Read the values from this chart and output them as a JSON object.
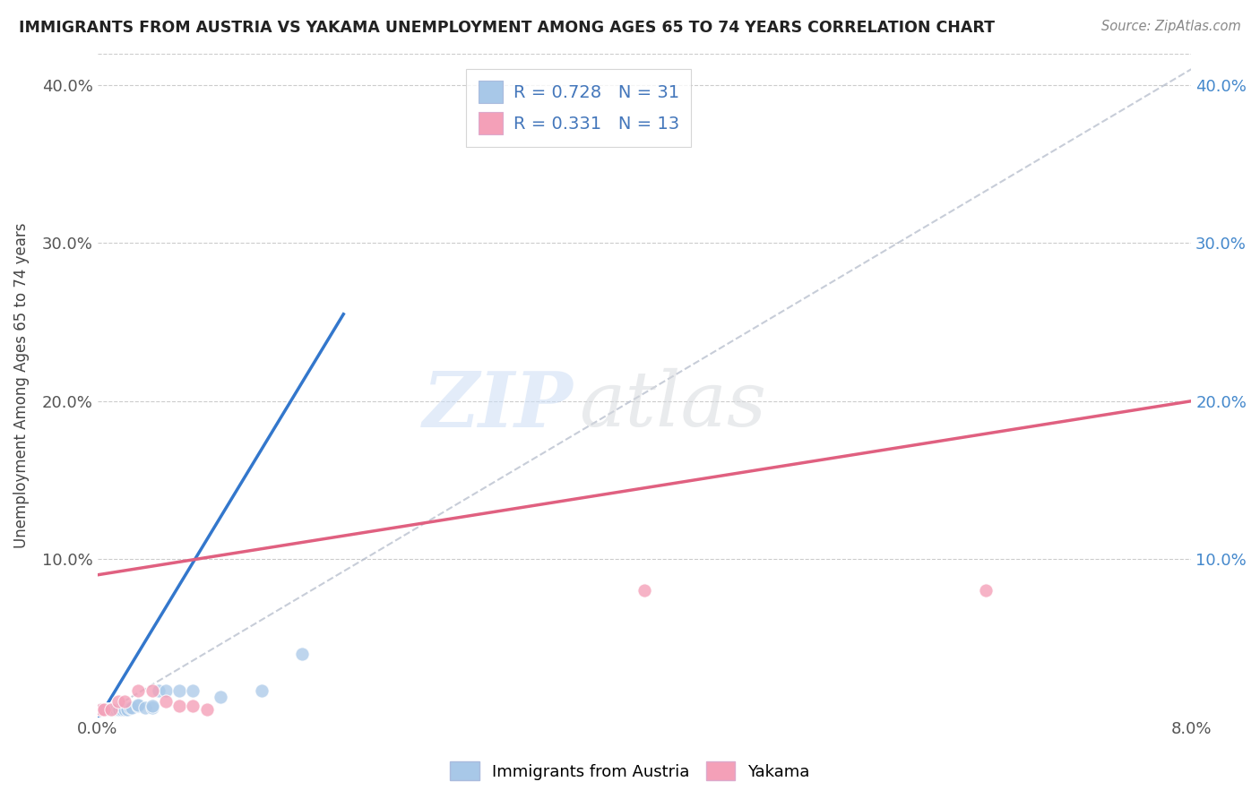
{
  "title": "IMMIGRANTS FROM AUSTRIA VS YAKAMA UNEMPLOYMENT AMONG AGES 65 TO 74 YEARS CORRELATION CHART",
  "source": "Source: ZipAtlas.com",
  "ylabel": "Unemployment Among Ages 65 to 74 years",
  "xlim": [
    0.0,
    0.08
  ],
  "ylim": [
    0.0,
    0.42
  ],
  "austria_scatter_color": "#a8c8e8",
  "yakama_scatter_color": "#f4a0b8",
  "trendline_austria_color": "#3377cc",
  "trendline_yakama_color": "#e06080",
  "trendline_ref_color": "#b0b8c8",
  "R_austria": 0.728,
  "N_austria": 31,
  "R_yakama": 0.331,
  "N_yakama": 13,
  "austria_x": [
    0.0002,
    0.0003,
    0.0004,
    0.0005,
    0.0006,
    0.0007,
    0.0008,
    0.0009,
    0.001,
    0.0012,
    0.0013,
    0.0014,
    0.0015,
    0.0016,
    0.0018,
    0.002,
    0.0022,
    0.0024,
    0.0025,
    0.003,
    0.003,
    0.0035,
    0.004,
    0.004,
    0.0045,
    0.005,
    0.006,
    0.007,
    0.009,
    0.012,
    0.015
  ],
  "austria_y": [
    0.005,
    0.005,
    0.005,
    0.005,
    0.005,
    0.005,
    0.005,
    0.005,
    0.005,
    0.005,
    0.005,
    0.005,
    0.005,
    0.005,
    0.005,
    0.005,
    0.005,
    0.006,
    0.006,
    0.007,
    0.008,
    0.006,
    0.006,
    0.007,
    0.017,
    0.017,
    0.017,
    0.017,
    0.013,
    0.017,
    0.04
  ],
  "yakama_x": [
    0.0003,
    0.0005,
    0.001,
    0.0015,
    0.002,
    0.003,
    0.004,
    0.005,
    0.006,
    0.007,
    0.008,
    0.04,
    0.065
  ],
  "yakama_y": [
    0.005,
    0.005,
    0.005,
    0.01,
    0.01,
    0.017,
    0.017,
    0.01,
    0.007,
    0.007,
    0.005,
    0.08,
    0.08
  ],
  "austria_trend_x0": 0.0,
  "austria_trend_y0": -0.002,
  "austria_trend_x1": 0.018,
  "austria_trend_y1": 0.255,
  "yakama_trend_x0": 0.0,
  "yakama_trend_y0": 0.09,
  "yakama_trend_x1": 0.08,
  "yakama_trend_y1": 0.2,
  "ref_line_x0": 0.0,
  "ref_line_y0": 0.0,
  "ref_line_x1": 0.08,
  "ref_line_y1": 0.41
}
